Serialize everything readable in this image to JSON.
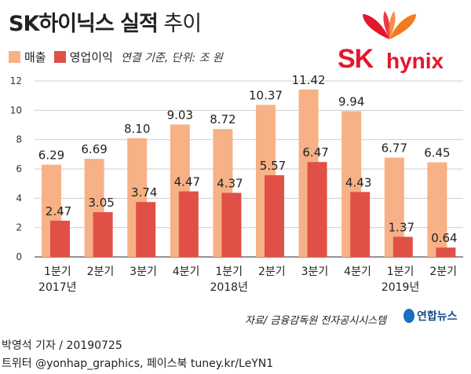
{
  "title_bold": "SK하이닉스 실적",
  "title_light": "추이",
  "legend": {
    "sales": "매출",
    "operating_profit": "영업이익",
    "unit": "연결 기준, 단위: 조 원"
  },
  "logo": {
    "sk": "SK",
    "hynix": "hynix"
  },
  "colors": {
    "sales": "#f7b186",
    "operating_profit": "#e05046",
    "logo_red": "#e4162b",
    "logo_orange": "#f47c20"
  },
  "chart_data": {
    "type": "bar",
    "categories": [
      "1분기",
      "2분기",
      "3분기",
      "4분기",
      "1분기",
      "2분기",
      "3분기",
      "4분기",
      "1분기",
      "2분기"
    ],
    "year_labels": [
      {
        "label": "2017년",
        "index": 0
      },
      {
        "label": "2018년",
        "index": 4
      },
      {
        "label": "2019년",
        "index": 8
      }
    ],
    "series": [
      {
        "name": "매출",
        "values": [
          6.29,
          6.69,
          8.1,
          9.03,
          8.72,
          10.37,
          11.42,
          9.94,
          6.77,
          6.45
        ],
        "labels": [
          "6.29",
          "6.69",
          "8.10",
          "9.03",
          "8.72",
          "10.37",
          "11.42",
          "9.94",
          "6.77",
          "6.45"
        ]
      },
      {
        "name": "영업이익",
        "values": [
          2.47,
          3.05,
          3.74,
          4.47,
          4.37,
          5.57,
          6.47,
          4.43,
          1.37,
          0.64
        ],
        "labels": [
          "2.47",
          "3.05",
          "3.74",
          "4.47",
          "4.37",
          "5.57",
          "6.47",
          "4.43",
          "1.37",
          "0.64"
        ]
      }
    ],
    "yticks": [
      "0",
      "2",
      "4",
      "6",
      "8",
      "10",
      "12"
    ],
    "ylim": [
      0,
      12
    ],
    "grid": true
  },
  "source": "자료/ 금융감독원 전자공시시스템",
  "agency": "연합뉴스",
  "credit_line1": "박영석 기자 / 20190725",
  "credit_line2": "트위터 @yonhap_graphics, 페이스북 tuney.kr/LeYN1"
}
